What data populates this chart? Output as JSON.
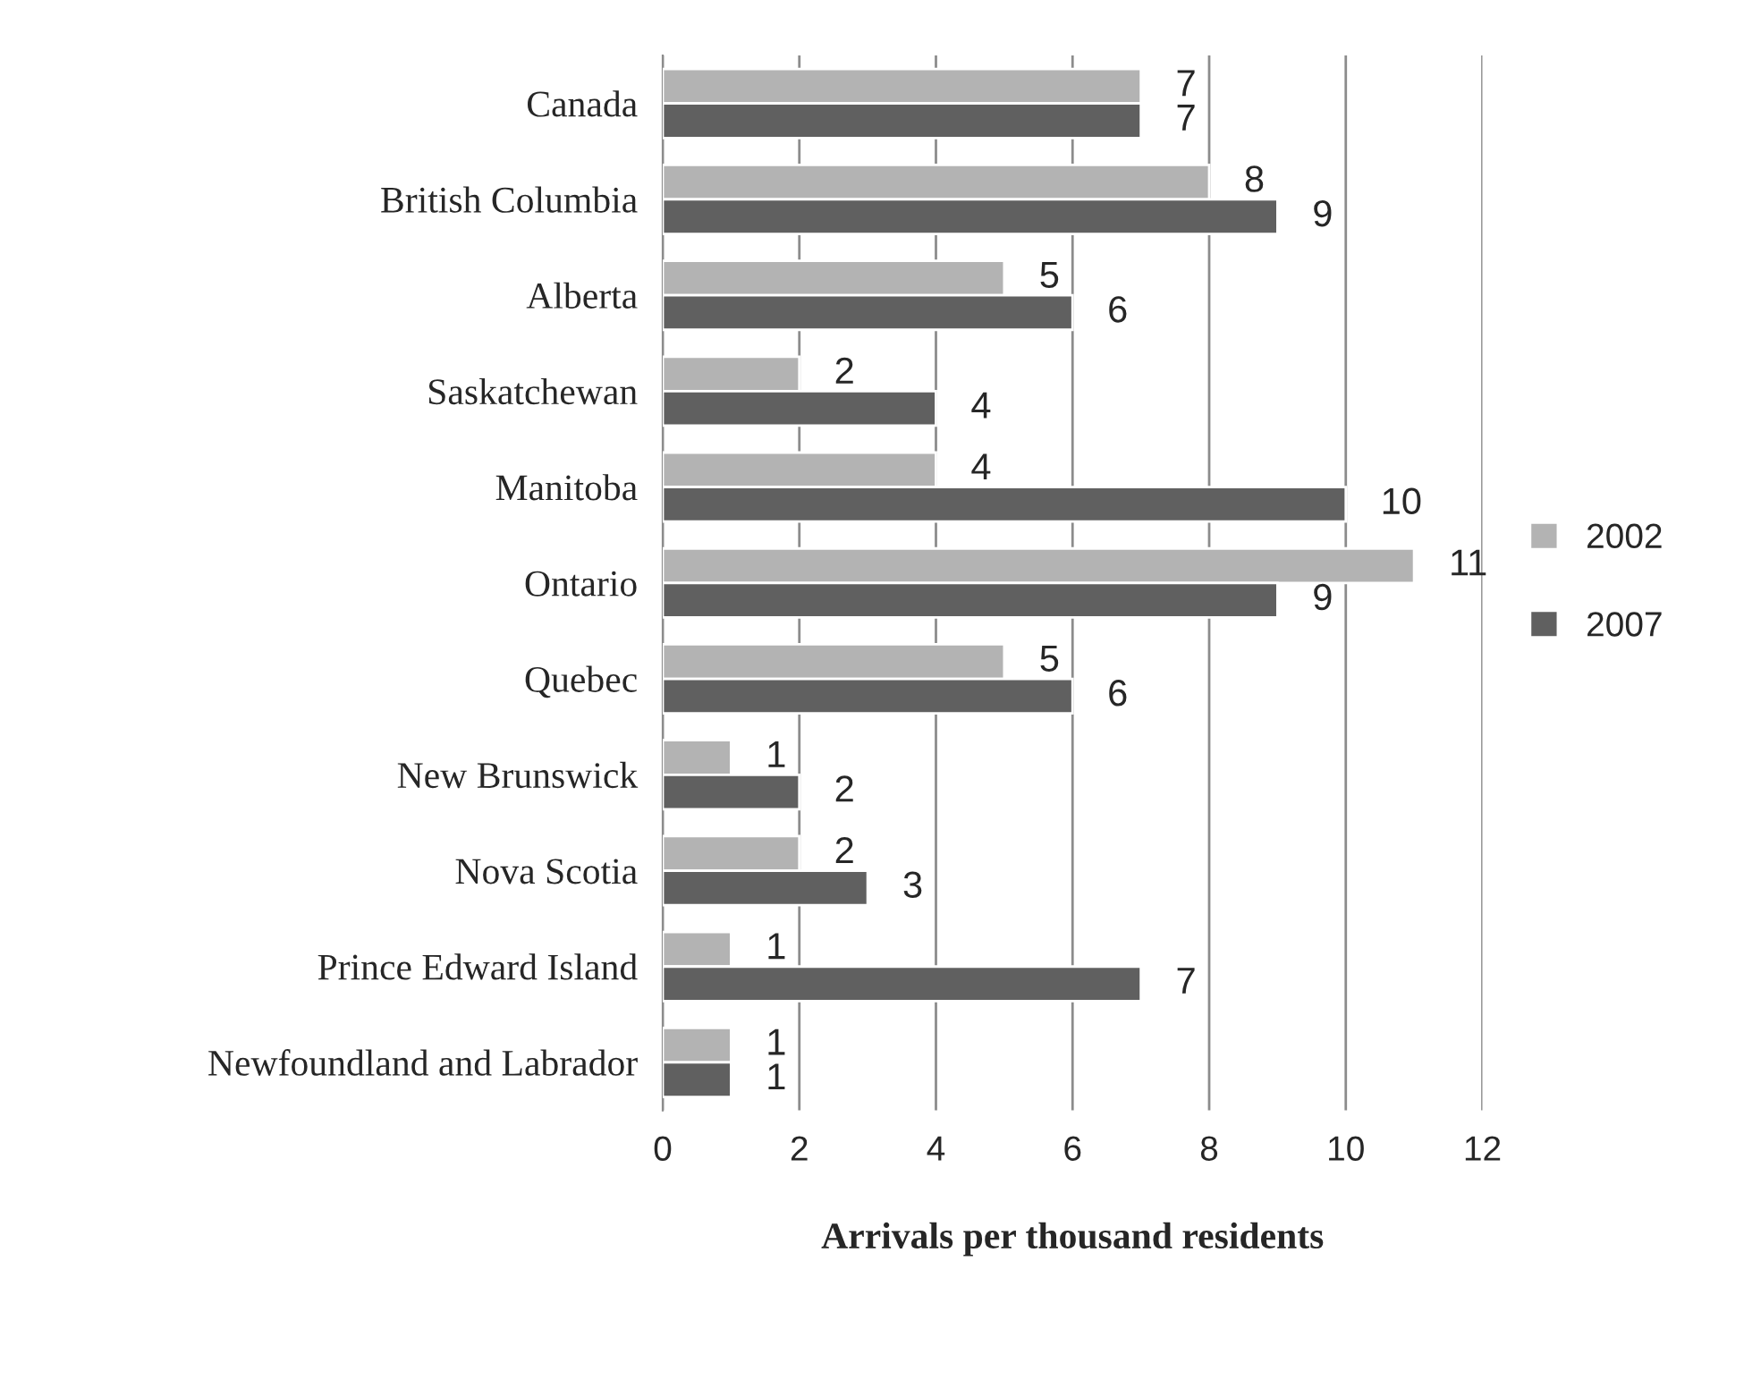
{
  "chart_data": {
    "type": "bar",
    "orientation": "horizontal",
    "xlabel": "Arrivals per thousand residents",
    "categories": [
      "Canada",
      "British Columbia",
      "Alberta",
      "Saskatchewan",
      "Manitoba",
      "Ontario",
      "Quebec",
      "New Brunswick",
      "Nova Scotia",
      "Prince Edward Island",
      "Newfoundland and Labrador"
    ],
    "series": [
      {
        "name": "2002",
        "color": "#b3b3b3",
        "values": [
          7,
          8,
          5,
          2,
          4,
          11,
          5,
          1,
          2,
          1,
          1
        ]
      },
      {
        "name": "2007",
        "color": "#606060",
        "values": [
          7,
          9,
          6,
          4,
          10,
          9,
          6,
          2,
          3,
          7,
          1
        ]
      }
    ],
    "xlim": [
      0,
      12
    ],
    "xticks": [
      0,
      2,
      4,
      6,
      8,
      10,
      12
    ],
    "grid": "x",
    "legend": "right",
    "data_labels": true
  }
}
